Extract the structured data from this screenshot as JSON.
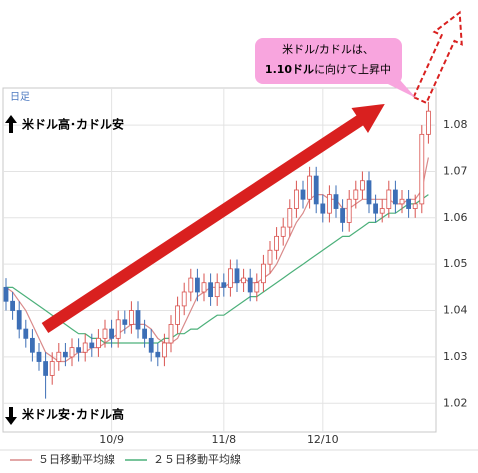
{
  "chart_data": {
    "type": "candlestick",
    "period_label": "日足",
    "annotations": [
      "米ドル高･カドル安",
      "米ドル安･カドル高"
    ],
    "callout": [
      "米ドル/カドルは、",
      "1.10ドル",
      "に向けて上昇中"
    ],
    "categories": [
      null,
      null,
      null,
      null,
      null,
      null,
      null,
      null,
      null,
      null,
      null,
      null,
      null,
      null,
      null,
      null,
      "10/9",
      null,
      null,
      null,
      null,
      null,
      null,
      null,
      null,
      null,
      null,
      null,
      null,
      null,
      null,
      null,
      null,
      "11/8",
      null,
      null,
      null,
      null,
      null,
      null,
      null,
      null,
      null,
      null,
      null,
      null,
      null,
      null,
      "12/10",
      null,
      null,
      null,
      null,
      null,
      null,
      null,
      null,
      null,
      null,
      null,
      null,
      null,
      null,
      null,
      null
    ],
    "open": [
      1.045,
      1.042,
      1.04,
      1.036,
      1.034,
      1.031,
      1.029,
      1.026,
      1.029,
      1.031,
      1.03,
      1.032,
      1.031,
      1.033,
      1.032,
      1.034,
      1.036,
      1.034,
      1.038,
      1.037,
      1.04,
      1.036,
      1.034,
      1.031,
      1.03,
      1.033,
      1.037,
      1.041,
      1.044,
      1.047,
      1.044,
      1.046,
      1.043,
      1.046,
      1.045,
      1.049,
      1.046,
      1.047,
      1.044,
      1.046,
      1.05,
      1.053,
      1.056,
      1.058,
      1.062,
      1.066,
      1.064,
      1.069,
      1.063,
      1.061,
      1.065,
      1.062,
      1.059,
      1.064,
      1.066,
      1.068,
      1.063,
      1.061,
      1.062,
      1.066,
      1.063,
      1.064,
      1.062,
      1.063,
      1.078
    ],
    "high": [
      1.047,
      1.044,
      1.042,
      1.038,
      1.036,
      1.033,
      1.031,
      1.031,
      1.033,
      1.033,
      1.034,
      1.034,
      1.035,
      1.035,
      1.036,
      1.038,
      1.038,
      1.04,
      1.04,
      1.042,
      1.042,
      1.038,
      1.036,
      1.033,
      1.035,
      1.039,
      1.043,
      1.046,
      1.049,
      1.049,
      1.048,
      1.048,
      1.048,
      1.048,
      1.051,
      1.051,
      1.049,
      1.049,
      1.048,
      1.052,
      1.055,
      1.058,
      1.06,
      1.064,
      1.068,
      1.068,
      1.071,
      1.071,
      1.065,
      1.067,
      1.067,
      1.064,
      1.066,
      1.068,
      1.07,
      1.07,
      1.065,
      1.064,
      1.068,
      1.068,
      1.066,
      1.066,
      1.065,
      1.08,
      1.085
    ],
    "low": [
      1.04,
      1.038,
      1.034,
      1.032,
      1.029,
      1.027,
      1.021,
      1.024,
      1.027,
      1.028,
      1.028,
      1.029,
      1.029,
      1.03,
      1.03,
      1.032,
      1.032,
      1.032,
      1.035,
      1.035,
      1.034,
      1.032,
      1.029,
      1.028,
      1.028,
      1.031,
      1.035,
      1.039,
      1.042,
      1.042,
      1.042,
      1.041,
      1.041,
      1.043,
      1.043,
      1.044,
      1.044,
      1.042,
      1.042,
      1.044,
      1.048,
      1.051,
      1.054,
      1.056,
      1.06,
      1.062,
      1.062,
      1.061,
      1.059,
      1.059,
      1.06,
      1.057,
      1.057,
      1.062,
      1.064,
      1.061,
      1.059,
      1.059,
      1.06,
      1.061,
      1.061,
      1.06,
      1.06,
      1.061,
      1.076
    ],
    "close": [
      1.042,
      1.04,
      1.036,
      1.034,
      1.031,
      1.029,
      1.026,
      1.029,
      1.031,
      1.03,
      1.032,
      1.031,
      1.033,
      1.032,
      1.034,
      1.036,
      1.034,
      1.038,
      1.037,
      1.04,
      1.036,
      1.034,
      1.031,
      1.03,
      1.033,
      1.037,
      1.041,
      1.044,
      1.047,
      1.044,
      1.046,
      1.043,
      1.046,
      1.045,
      1.049,
      1.046,
      1.047,
      1.044,
      1.046,
      1.05,
      1.053,
      1.056,
      1.058,
      1.062,
      1.066,
      1.064,
      1.069,
      1.063,
      1.061,
      1.065,
      1.062,
      1.059,
      1.064,
      1.066,
      1.068,
      1.063,
      1.061,
      1.062,
      1.066,
      1.063,
      1.064,
      1.062,
      1.063,
      1.078,
      1.083
    ],
    "up_color": "#ffffff",
    "up_edge": "#d9534f",
    "down_color": "#3d6fb6",
    "series": [
      {
        "name": "５日移動平均線",
        "color": "#d98a8a",
        "values": [
          1.045,
          1.044,
          1.042,
          1.04,
          1.037,
          1.034,
          1.031,
          1.03,
          1.029,
          1.029,
          1.03,
          1.031,
          1.031,
          1.032,
          1.032,
          1.033,
          1.034,
          1.035,
          1.036,
          1.037,
          1.037,
          1.037,
          1.036,
          1.034,
          1.033,
          1.033,
          1.034,
          1.037,
          1.04,
          1.043,
          1.044,
          1.045,
          1.045,
          1.045,
          1.046,
          1.046,
          1.047,
          1.046,
          1.046,
          1.047,
          1.048,
          1.05,
          1.053,
          1.056,
          1.059,
          1.061,
          1.064,
          1.065,
          1.065,
          1.064,
          1.064,
          1.062,
          1.062,
          1.063,
          1.064,
          1.064,
          1.064,
          1.064,
          1.064,
          1.063,
          1.063,
          1.064,
          1.064,
          1.066,
          1.073
        ]
      },
      {
        "name": "２５日移動平均線",
        "color": "#4cb07a",
        "values": [
          1.045,
          1.045,
          1.044,
          1.043,
          1.042,
          1.041,
          1.04,
          1.039,
          1.038,
          1.037,
          1.036,
          1.035,
          1.035,
          1.034,
          1.034,
          1.033,
          1.033,
          1.033,
          1.033,
          1.033,
          1.033,
          1.033,
          1.033,
          1.033,
          1.034,
          1.034,
          1.035,
          1.035,
          1.036,
          1.036,
          1.037,
          1.038,
          1.039,
          1.039,
          1.04,
          1.041,
          1.042,
          1.043,
          1.043,
          1.044,
          1.045,
          1.046,
          1.047,
          1.048,
          1.049,
          1.05,
          1.051,
          1.052,
          1.053,
          1.054,
          1.055,
          1.056,
          1.056,
          1.057,
          1.058,
          1.059,
          1.059,
          1.06,
          1.061,
          1.061,
          1.062,
          1.063,
          1.063,
          1.064,
          1.065
        ]
      }
    ],
    "ylim": [
      1.0138,
      1.088
    ],
    "yticks": [
      1.02,
      1.03,
      1.04,
      1.05,
      1.06,
      1.07,
      1.08
    ],
    "grid": true
  }
}
